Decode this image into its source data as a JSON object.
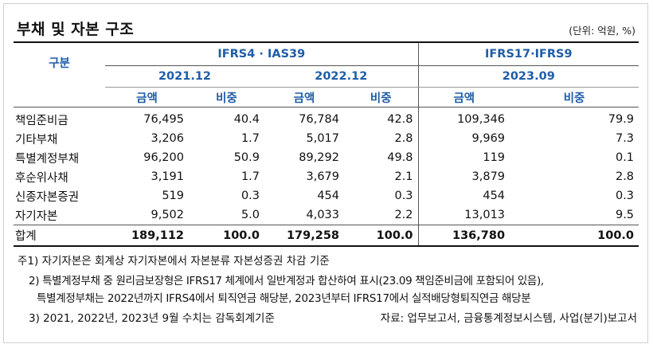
{
  "title": "부채 및 자본 구조",
  "unit": "(단위: 억원, %)",
  "header": {
    "row_label": "구분",
    "group1": "IFRS4 · IAS39",
    "group2": "IFRS17·IFRS9",
    "years": [
      "2021.12",
      "2022.12",
      "2023.09"
    ],
    "col_amount": "금액",
    "col_ratio": "비중"
  },
  "rows": [
    {
      "label": "책임준비금",
      "v": [
        "76,495",
        "40.4",
        "76,784",
        "42.8",
        "109,346",
        "79.9"
      ]
    },
    {
      "label": "기타부채",
      "v": [
        "3,206",
        "1.7",
        "5,017",
        "2.8",
        "9,969",
        "7.3"
      ]
    },
    {
      "label": "특별계정부채",
      "v": [
        "96,200",
        "50.9",
        "89,292",
        "49.8",
        "119",
        "0.1"
      ]
    },
    {
      "label": "후순위사채",
      "v": [
        "3,191",
        "1.7",
        "3,679",
        "2.1",
        "3,879",
        "2.8"
      ]
    },
    {
      "label": "신종자본증권",
      "v": [
        "519",
        "0.3",
        "454",
        "0.3",
        "454",
        "0.3"
      ]
    },
    {
      "label": "자기자본",
      "v": [
        "9,502",
        "5.0",
        "4,033",
        "2.2",
        "13,013",
        "9.5"
      ]
    }
  ],
  "total": {
    "label": "합계",
    "v": [
      "189,112",
      "100.0",
      "179,258",
      "100.0",
      "136,780",
      "100.0"
    ]
  },
  "notes": [
    "주1) 자기자본은 회계상 자기자본에서 자본분류 자본성증권 차감 기준",
    "2) 특별계정부채 중 원리금보장형은 IFRS17 체계에서 일반계정과 합산하여 표시(23.09 책임준비금에 포함되어 있음),",
    "특별계정부채는 2022년까지 IFRS4에서 퇴직연금 해당분, 2023년부터 IFRS17에서 실적배당형퇴직연금 해당분",
    "3) 2021, 2022년, 2023년 9월 수치는 감독회계기준"
  ],
  "source": "자료: 업무보고서, 금융통계정보시스템, 사업(분기)보고서"
}
